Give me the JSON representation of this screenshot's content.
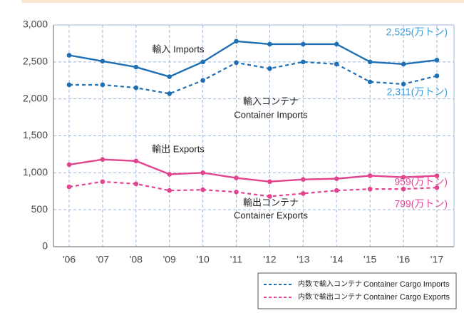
{
  "chart_data": {
    "type": "line",
    "categories": [
      "'06",
      "'07",
      "'08",
      "'09",
      "'10",
      "'11",
      "'12",
      "'13",
      "'14",
      "'15",
      "'16",
      "'17"
    ],
    "series": [
      {
        "label_lines": [
          "輸入 Imports"
        ],
        "color": "#1f6fb4",
        "dashed": false,
        "values": [
          2590,
          2510,
          2430,
          2300,
          2500,
          2780,
          2740,
          2740,
          2740,
          2500,
          2470,
          2525
        ],
        "value_labels": [
          null,
          null,
          null,
          null,
          null,
          null,
          null,
          null,
          null,
          null,
          null,
          "2,525(万トン)"
        ]
      },
      {
        "label_lines": [
          "輸入コンテナ",
          "Container Imports"
        ],
        "color": "#1f6fb4",
        "dashed": true,
        "values": [
          2190,
          2190,
          2150,
          2070,
          2250,
          2490,
          2410,
          2500,
          2470,
          2230,
          2200,
          2311
        ],
        "value_labels": [
          null,
          null,
          null,
          null,
          null,
          null,
          null,
          null,
          null,
          null,
          null,
          "2,311(万トン)"
        ]
      },
      {
        "label_lines": [
          "輸出 Exports"
        ],
        "color": "#e2458f",
        "dashed": false,
        "values": [
          1110,
          1180,
          1160,
          980,
          1000,
          930,
          880,
          910,
          920,
          960,
          940,
          959
        ],
        "value_labels": [
          null,
          null,
          null,
          null,
          null,
          null,
          null,
          null,
          null,
          null,
          null,
          "959(万トン)"
        ]
      },
      {
        "label_lines": [
          "輸出コンテナ",
          "Container Exports"
        ],
        "color": "#e2458f",
        "dashed": true,
        "values": [
          810,
          880,
          850,
          760,
          770,
          740,
          680,
          720,
          760,
          780,
          780,
          799
        ],
        "value_labels": [
          null,
          null,
          null,
          null,
          null,
          null,
          null,
          null,
          null,
          null,
          null,
          "799(万トン)"
        ]
      }
    ],
    "ylim": [
      0,
      3000
    ],
    "yticks": [
      0,
      500,
      {
        "value": 1000,
        "label": "1,000"
      },
      {
        "value": 1500,
        "label": "1,500"
      },
      {
        "value": 2000,
        "label": "2,000"
      },
      {
        "value": 2500,
        "label": "2,500"
      },
      {
        "value": 3000,
        "label": "3,000"
      }
    ],
    "grid": true,
    "legend": [
      {
        "jp": "内数で輸入コンテナ",
        "en": "Container Cargo Imports",
        "color": "#1f6fb4",
        "dashed": true
      },
      {
        "jp": "内数で輸出コンテナ",
        "en": "Container Cargo Exports",
        "color": "#e2458f",
        "dashed": true
      }
    ]
  }
}
